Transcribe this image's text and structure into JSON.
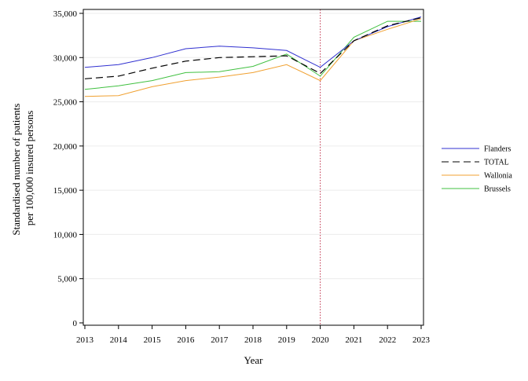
{
  "chart_data": {
    "type": "line",
    "title": "",
    "xlabel": "Year",
    "ylabel_lines": [
      "Standardised number of patients",
      "per 100,000 insured persons"
    ],
    "x": [
      2013,
      2014,
      2015,
      2016,
      2017,
      2018,
      2019,
      2020,
      2021,
      2022,
      2023
    ],
    "x_tick_labels": [
      "2013",
      "2014",
      "2015",
      "2016",
      "2017",
      "2018",
      "2019",
      "2020",
      "2021",
      "2022",
      "2023"
    ],
    "ylim": [
      0,
      35000
    ],
    "y_ticks": [
      0,
      5000,
      10000,
      15000,
      20000,
      25000,
      30000,
      35000
    ],
    "y_tick_labels": [
      "0",
      "5,000",
      "10,000",
      "15,000",
      "20,000",
      "25,000",
      "30,000",
      "35,000"
    ],
    "grid": "horizontal",
    "reference_line": {
      "x": 2020,
      "color": "#c0304a",
      "style": "dotted"
    },
    "legend_position": "right",
    "series": [
      {
        "name": "Flanders",
        "color": "#3030d0",
        "dash": "solid",
        "values": [
          28900,
          29200,
          30000,
          31000,
          31300,
          31100,
          30800,
          28900,
          31900,
          33500,
          34600
        ]
      },
      {
        "name": "TOTAL",
        "color": "#000000",
        "dash": "dashed",
        "values": [
          27600,
          27900,
          28800,
          29600,
          30000,
          30100,
          30200,
          28200,
          31900,
          33600,
          34500
        ]
      },
      {
        "name": "Wallonia",
        "color": "#f0a030",
        "dash": "solid",
        "values": [
          25600,
          25700,
          26700,
          27400,
          27800,
          28300,
          29200,
          27400,
          31900,
          33200,
          34400
        ]
      },
      {
        "name": "Brussels",
        "color": "#40c040",
        "dash": "solid",
        "values": [
          26400,
          26800,
          27400,
          28300,
          28400,
          29000,
          30400,
          27900,
          32300,
          34100,
          34100
        ]
      }
    ]
  }
}
